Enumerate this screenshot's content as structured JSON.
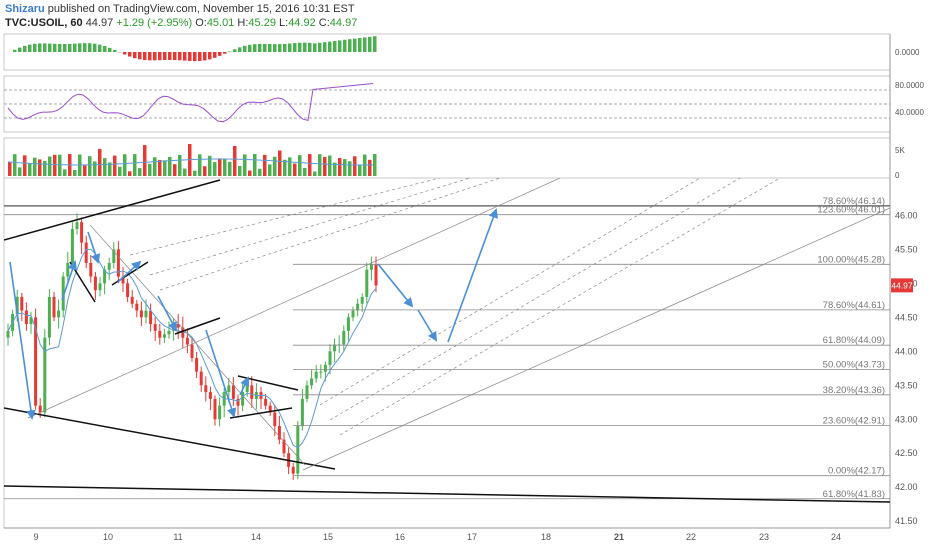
{
  "header": {
    "author": "Shizaru",
    "published_text": "published on TradingView.com, November 15, 2016 10:31 EST",
    "symbol_interval": "TVC:USOIL, 60",
    "last": "44.97",
    "change": "+1.29 (+2.95%)",
    "open_label": "O:",
    "open": "45.01",
    "high_label": "H:",
    "high": "45.29",
    "low_label": "L:",
    "low": "44.92",
    "close_label": "C:",
    "close": "44.97"
  },
  "chart_data": {
    "type": "candlestick",
    "price_axis": {
      "ticks": [
        "46.00",
        "45.50",
        "45.00",
        "44.50",
        "44.00",
        "43.50",
        "43.00",
        "42.50",
        "42.00",
        "41.50"
      ],
      "range": [
        41.4,
        46.55
      ]
    },
    "current_price_label": "44.97",
    "time_axis": [
      "9",
      "10",
      "11",
      "14",
      "15",
      "16",
      "17",
      "18",
      "21",
      "22",
      "23",
      "24"
    ],
    "fib_levels": [
      {
        "label": "78.60%(46.14)",
        "value": 46.14
      },
      {
        "label": "123.60%(46.01)",
        "value": 46.01
      },
      {
        "label": "100.00%(45.28)",
        "value": 45.28
      },
      {
        "label": "78.60%(44.61)",
        "value": 44.61
      },
      {
        "label": "61.80%(44.09)",
        "value": 44.09
      },
      {
        "label": "50.00%(43.73)",
        "value": 43.73
      },
      {
        "label": "38.20%(43.36)",
        "value": 43.36
      },
      {
        "label": "23.60%(42.91)",
        "value": 42.91
      },
      {
        "label": "0.00%(42.17)",
        "value": 42.17
      },
      {
        "label": "61.80%(41.83)",
        "value": 41.83
      }
    ],
    "indicator_axes": {
      "oscillator": [
        "0.0000"
      ],
      "rsi": [
        "80.0000",
        "40.0000"
      ],
      "volume": [
        "5K",
        "0"
      ]
    },
    "colors": {
      "up": "#4caf50",
      "down": "#e53935",
      "ma": "#5b9bd5",
      "rsi": "#9b4fd1",
      "arrow": "#4a8fd8"
    },
    "price_path": [
      44.3,
      44.55,
      44.8,
      44.6,
      44.4,
      44.5,
      43.2,
      43.1,
      44.2,
      44.8,
      44.5,
      44.6,
      45.1,
      45.3,
      45.8,
      45.9,
      45.6,
      45.3,
      45.1,
      44.9,
      45.0,
      45.2,
      45.3,
      45.5,
      45.1,
      45.0,
      44.8,
      44.7,
      44.6,
      44.5,
      44.6,
      44.4,
      44.3,
      44.2,
      44.25,
      44.3,
      44.4,
      44.35,
      44.2,
      44.1,
      43.9,
      43.7,
      43.5,
      43.4,
      43.3,
      43.0,
      43.2,
      43.4,
      43.5,
      43.3,
      43.2,
      43.4,
      43.5,
      43.3,
      43.4,
      43.3,
      43.2,
      43.1,
      42.9,
      42.7,
      42.5,
      42.3,
      42.2,
      42.9,
      43.3,
      43.5,
      43.6,
      43.7,
      43.7,
      43.8,
      44.0,
      44.1,
      44.1,
      44.3,
      44.5,
      44.6,
      44.7,
      44.8,
      45.2,
      45.28,
      44.97
    ]
  }
}
